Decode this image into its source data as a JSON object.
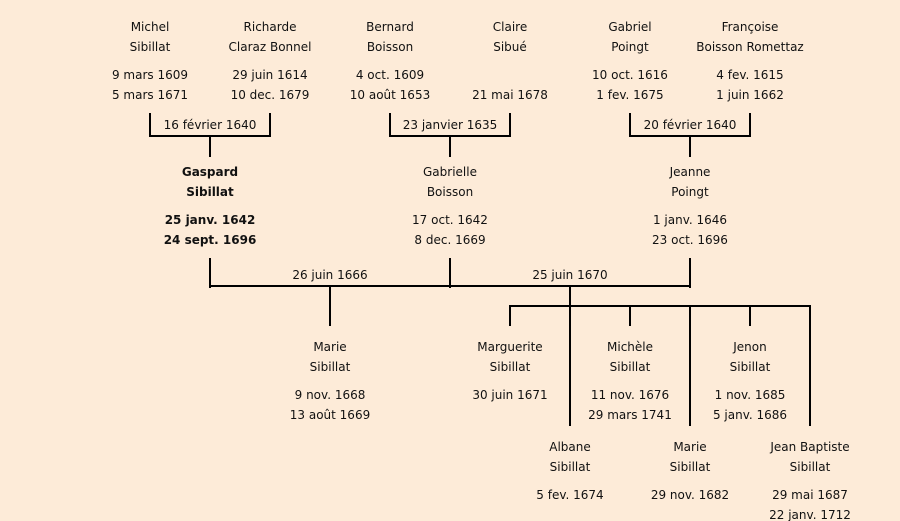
{
  "persons": [
    {
      "id": "michel-sibillat",
      "first": "Michel",
      "last": "Sibillat",
      "birth": "9 mars 1609",
      "death": "5 mars 1671"
    },
    {
      "id": "richarde-claraz-bonnel",
      "first": "Richarde",
      "last": "Claraz Bonnel",
      "birth": "29 juin 1614",
      "death": "10 dec. 1679"
    },
    {
      "id": "bernard-boisson",
      "first": "Bernard",
      "last": "Boisson",
      "birth": "4 oct. 1609",
      "death": "10 août 1653"
    },
    {
      "id": "claire-sibue",
      "first": "Claire",
      "last": "Sibué",
      "birth": "",
      "death": "21 mai 1678"
    },
    {
      "id": "gabriel-poingt",
      "first": "Gabriel",
      "last": "Poingt",
      "birth": "10 oct. 1616",
      "death": "1 fev. 1675"
    },
    {
      "id": "francoise-boisson-romettaz",
      "first": "Françoise",
      "last": "Boisson Romettaz",
      "birth": "4 fev. 1615",
      "death": "1 juin 1662"
    },
    {
      "id": "gaspard-sibillat",
      "first": "Gaspard",
      "last": "Sibillat",
      "birth": "25 janv. 1642",
      "death": "24 sept. 1696",
      "highlighted": true
    },
    {
      "id": "gabrielle-boisson",
      "first": "Gabrielle",
      "last": "Boisson",
      "birth": "17 oct. 1642",
      "death": "8 dec. 1669"
    },
    {
      "id": "jeanne-poingt",
      "first": "Jeanne",
      "last": "Poingt",
      "birth": "1 janv. 1646",
      "death": "23 oct. 1696"
    },
    {
      "id": "marie-sibillat-1668",
      "first": "Marie",
      "last": "Sibillat",
      "birth": "9 nov. 1668",
      "death": "13 août 1669"
    },
    {
      "id": "marguerite-sibillat",
      "first": "Marguerite",
      "last": "Sibillat",
      "birth": "30 juin 1671",
      "death": ""
    },
    {
      "id": "michele-sibillat",
      "first": "Michèle",
      "last": "Sibillat",
      "birth": "11 nov. 1676",
      "death": "29 mars 1741"
    },
    {
      "id": "jenon-sibillat",
      "first": "Jenon",
      "last": "Sibillat",
      "birth": "1 nov. 1685",
      "death": "5 janv. 1686"
    },
    {
      "id": "albane-sibillat",
      "first": "Albane",
      "last": "Sibillat",
      "birth": "5 fev. 1674",
      "death": ""
    },
    {
      "id": "marie-sibillat-1682",
      "first": "Marie",
      "last": "Sibillat",
      "birth": "29 nov. 1682",
      "death": ""
    },
    {
      "id": "jean-baptiste-sibillat",
      "first": "Jean Baptiste",
      "last": "Sibillat",
      "birth": "29 mai 1687",
      "death": "22 janv. 1712"
    }
  ],
  "marriages": [
    {
      "partners": [
        "Michel Sibillat",
        "Richarde Claraz Bonnel"
      ],
      "date": "16 février 1640"
    },
    {
      "partners": [
        "Bernard Boisson",
        "Claire Sibué"
      ],
      "date": "23 janvier 1635"
    },
    {
      "partners": [
        "Gabriel Poingt",
        "Françoise Boisson Romettaz"
      ],
      "date": "20 février 1640"
    },
    {
      "partners": [
        "Gaspard Sibillat",
        "Gabrielle Boisson"
      ],
      "date": "26 juin 1666"
    },
    {
      "partners": [
        "Gaspard Sibillat",
        "Jeanne Poingt"
      ],
      "date": "25 juin 1670"
    }
  ],
  "colors": {
    "background": "#fdebd8",
    "lines": "#000000",
    "text": "#111111"
  }
}
